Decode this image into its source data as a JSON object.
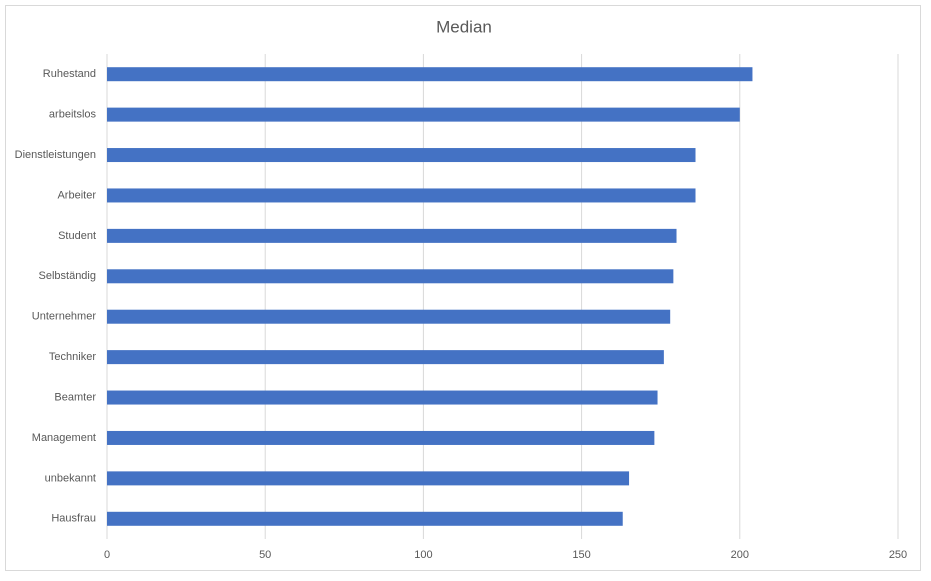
{
  "chart_data": {
    "type": "hbar",
    "title": "Median",
    "categories": [
      "Ruhestand",
      "arbeitslos",
      "Dienstleistungen",
      "Arbeiter",
      "Student",
      "Selbständig",
      "Unternehmer",
      "Techniker",
      "Beamter",
      "Management",
      "unbekannt",
      "Hausfrau"
    ],
    "values": [
      204,
      200,
      186,
      186,
      180,
      179,
      178,
      176,
      174,
      173,
      165,
      163
    ],
    "color": "#4472c4",
    "xlim": [
      0,
      250
    ],
    "xticks": [
      0,
      50,
      100,
      150,
      200,
      250
    ],
    "grid": true
  }
}
